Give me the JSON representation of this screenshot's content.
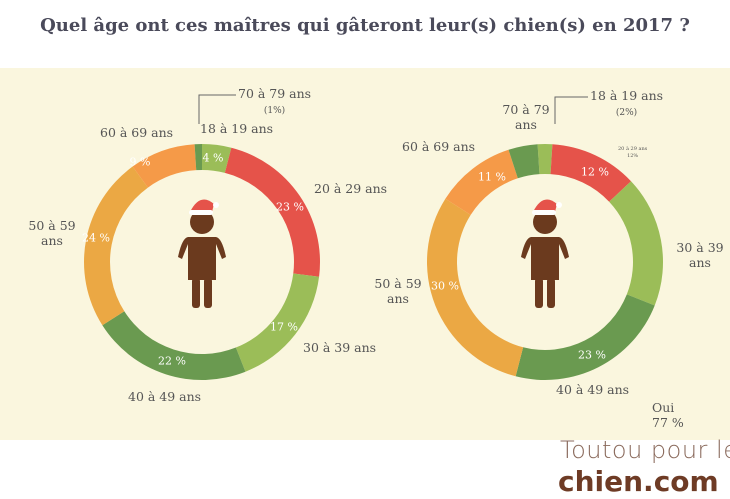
{
  "title": "Quel âge ont ces maîtres qui gâteront leur(s) chien(s) en 2017 ?",
  "chart_data": [
    {
      "type": "pie",
      "variant": "donut",
      "categories": [
        "18 à 19 ans",
        "20 à 29 ans",
        "30 à 39 ans",
        "40 à 49 ans",
        "50 à 59 ans",
        "60 à 69 ans",
        "70 à 79 ans"
      ],
      "values": [
        4,
        23,
        17,
        22,
        24,
        9,
        1
      ],
      "value_labels": [
        "4 %",
        "23 %",
        "17 %",
        "22 %",
        "24 %",
        "9 %",
        ""
      ],
      "extra": {
        "70 à 79 ans": "(1%)"
      },
      "colors": [
        "#9bbd58",
        "#e5534a",
        "#9bbd58",
        "#6a9a50",
        "#eba844",
        "#f59a48",
        "#6a9a50"
      ]
    },
    {
      "type": "pie",
      "variant": "donut",
      "categories": [
        "18 à 19 ans",
        "20 à 29 ans",
        "30 à 39 ans",
        "40 à 49 ans",
        "50 à 59 ans",
        "60 à 69 ans",
        "70 à 79 ans"
      ],
      "values": [
        2,
        12,
        18,
        23,
        30,
        11,
        4
      ],
      "value_labels": [
        "",
        "12 %",
        "",
        "23 %",
        "30 %",
        "11 %",
        ""
      ],
      "extra": {
        "18 à 19 ans": "(2%)",
        "20 à 29 ans": "12%"
      },
      "colors": [
        "#9bbd58",
        "#e5534a",
        "#9bbd58",
        "#6a9a50",
        "#eba844",
        "#f59a48",
        "#6a9a50"
      ],
      "annotation": {
        "label": "Oui",
        "value": "77 %"
      }
    }
  ],
  "logo": {
    "line1": "Toutou pour le",
    "line2": "chien.com"
  }
}
